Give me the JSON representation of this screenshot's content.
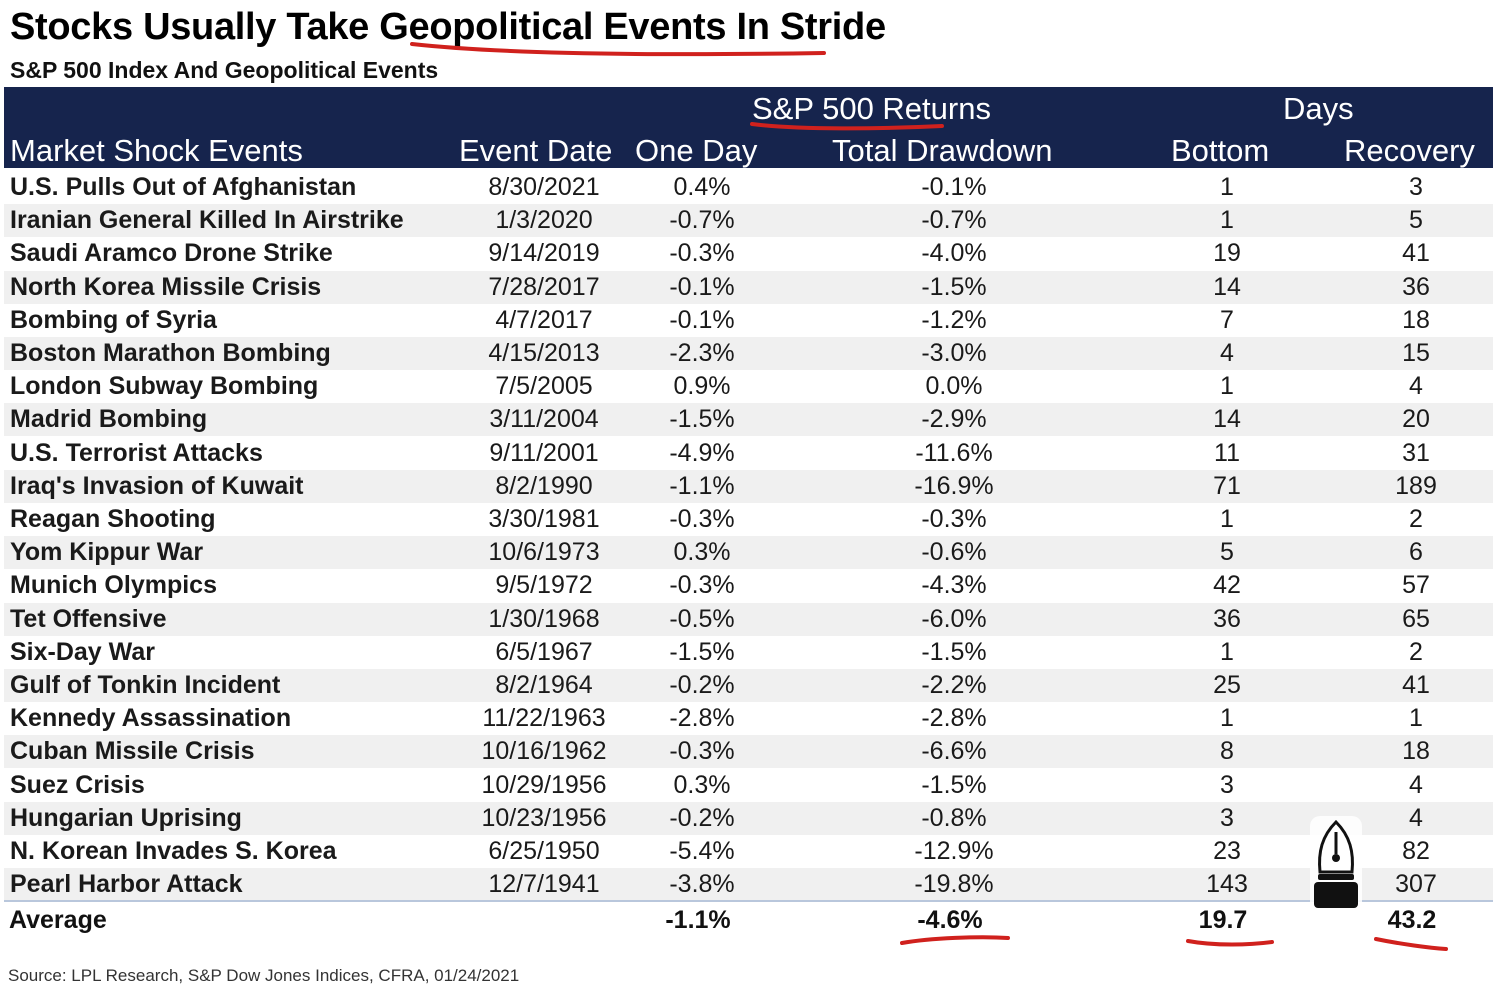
{
  "chart_data": {
    "type": "table",
    "title": "Stocks Usually Take Geopolitical Events In Stride",
    "subtitle": "S&P 500 Index And Geopolitical Events",
    "group_headers": {
      "returns": "S&P 500 Returns",
      "days": "Days"
    },
    "columns": [
      "Market Shock Events",
      "Event Date",
      "One Day",
      "Total Drawdown",
      "Bottom",
      "Recovery"
    ],
    "rows": [
      {
        "event": "U.S. Pulls Out of Afghanistan",
        "date": "8/30/2021",
        "one_day": "0.4%",
        "drawdown": "-0.1%",
        "bottom": "1",
        "recovery": "3"
      },
      {
        "event": "Iranian General Killed In Airstrike",
        "date": "1/3/2020",
        "one_day": "-0.7%",
        "drawdown": "-0.7%",
        "bottom": "1",
        "recovery": "5"
      },
      {
        "event": "Saudi Aramco Drone Strike",
        "date": "9/14/2019",
        "one_day": "-0.3%",
        "drawdown": "-4.0%",
        "bottom": "19",
        "recovery": "41"
      },
      {
        "event": "North Korea Missile Crisis",
        "date": "7/28/2017",
        "one_day": "-0.1%",
        "drawdown": "-1.5%",
        "bottom": "14",
        "recovery": "36"
      },
      {
        "event": "Bombing of Syria",
        "date": "4/7/2017",
        "one_day": "-0.1%",
        "drawdown": "-1.2%",
        "bottom": "7",
        "recovery": "18"
      },
      {
        "event": "Boston Marathon Bombing",
        "date": "4/15/2013",
        "one_day": "-2.3%",
        "drawdown": "-3.0%",
        "bottom": "4",
        "recovery": "15"
      },
      {
        "event": "London Subway Bombing",
        "date": "7/5/2005",
        "one_day": "0.9%",
        "drawdown": "0.0%",
        "bottom": "1",
        "recovery": "4"
      },
      {
        "event": "Madrid Bombing",
        "date": "3/11/2004",
        "one_day": "-1.5%",
        "drawdown": "-2.9%",
        "bottom": "14",
        "recovery": "20"
      },
      {
        "event": "U.S. Terrorist Attacks",
        "date": "9/11/2001",
        "one_day": "-4.9%",
        "drawdown": "-11.6%",
        "bottom": "11",
        "recovery": "31"
      },
      {
        "event": "Iraq's Invasion of Kuwait",
        "date": "8/2/1990",
        "one_day": "-1.1%",
        "drawdown": "-16.9%",
        "bottom": "71",
        "recovery": "189"
      },
      {
        "event": "Reagan Shooting",
        "date": "3/30/1981",
        "one_day": "-0.3%",
        "drawdown": "-0.3%",
        "bottom": "1",
        "recovery": "2"
      },
      {
        "event": "Yom Kippur War",
        "date": "10/6/1973",
        "one_day": "0.3%",
        "drawdown": "-0.6%",
        "bottom": "5",
        "recovery": "6"
      },
      {
        "event": "Munich Olympics",
        "date": "9/5/1972",
        "one_day": "-0.3%",
        "drawdown": "-4.3%",
        "bottom": "42",
        "recovery": "57"
      },
      {
        "event": "Tet Offensive",
        "date": "1/30/1968",
        "one_day": "-0.5%",
        "drawdown": "-6.0%",
        "bottom": "36",
        "recovery": "65"
      },
      {
        "event": "Six-Day War",
        "date": "6/5/1967",
        "one_day": "-1.5%",
        "drawdown": "-1.5%",
        "bottom": "1",
        "recovery": "2"
      },
      {
        "event": "Gulf of Tonkin Incident",
        "date": "8/2/1964",
        "one_day": "-0.2%",
        "drawdown": "-2.2%",
        "bottom": "25",
        "recovery": "41"
      },
      {
        "event": "Kennedy Assassination",
        "date": "11/22/1963",
        "one_day": "-2.8%",
        "drawdown": "-2.8%",
        "bottom": "1",
        "recovery": "1"
      },
      {
        "event": "Cuban Missile Crisis",
        "date": "10/16/1962",
        "one_day": "-0.3%",
        "drawdown": "-6.6%",
        "bottom": "8",
        "recovery": "18"
      },
      {
        "event": "Suez Crisis",
        "date": "10/29/1956",
        "one_day": "0.3%",
        "drawdown": "-1.5%",
        "bottom": "3",
        "recovery": "4"
      },
      {
        "event": "Hungarian Uprising",
        "date": "10/23/1956",
        "one_day": "-0.2%",
        "drawdown": "-0.8%",
        "bottom": "3",
        "recovery": "4"
      },
      {
        "event": "N. Korean Invades S. Korea",
        "date": "6/25/1950",
        "one_day": "-5.4%",
        "drawdown": "-12.9%",
        "bottom": "23",
        "recovery": "82"
      },
      {
        "event": "Pearl Harbor Attack",
        "date": "12/7/1941",
        "one_day": "-3.8%",
        "drawdown": "-19.8%",
        "bottom": "143",
        "recovery": "307"
      }
    ],
    "average": {
      "label": "Average",
      "one_day": "-1.1%",
      "drawdown": "-4.6%",
      "bottom": "19.7",
      "recovery": "43.2"
    },
    "source": "Source: LPL Research, S&P Dow Jones Indices, CFRA, 01/24/2021"
  },
  "colors": {
    "header_background": "#16244d",
    "alt_row": "#f0f0f0",
    "annotation_red": "#d0211d"
  },
  "icons": {
    "overlay": "fountain-pen-icon"
  }
}
